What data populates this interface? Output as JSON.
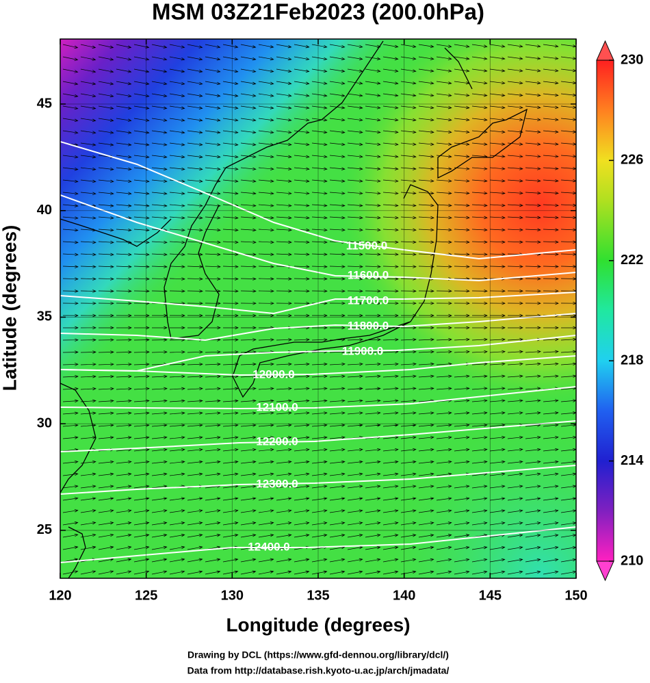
{
  "chart_data": {
    "type": "map",
    "title": "MSM 03Z21Feb2023 (200.0hPa)",
    "x_label": "Longitude (degrees)",
    "y_label": "Latitude  (degrees)",
    "xlim": [
      120,
      150
    ],
    "ylim": [
      22.75,
      48.05
    ],
    "xticks": [
      120,
      125,
      130,
      135,
      140,
      145,
      150
    ],
    "yticks": [
      25,
      30,
      35,
      40,
      45
    ],
    "grid": true,
    "contours": [
      {
        "value": 11500,
        "label": "11500.0"
      },
      {
        "value": 11600,
        "label": "11600.0"
      },
      {
        "value": 11700,
        "label": "11700.0"
      },
      {
        "value": 11800,
        "label": "11800.0"
      },
      {
        "value": 11900,
        "label": "11900.0"
      },
      {
        "value": 12000,
        "label": "12000.0"
      },
      {
        "value": 12100,
        "label": "12100.0"
      },
      {
        "value": 12200,
        "label": "12200.0"
      },
      {
        "value": 12300,
        "label": "12300.0"
      },
      {
        "value": 12400,
        "label": "12400.0"
      }
    ],
    "colorbar": {
      "lim": [
        210,
        230
      ],
      "ticks": [
        210,
        214,
        218,
        222,
        226,
        230
      ]
    },
    "credits": [
      "Drawing by DCL (https://www.gfd-dennou.org/library/dcl/)",
      "Data from http://database.rish.kyoto-u.ac.jp/arch/jmadata/"
    ]
  }
}
